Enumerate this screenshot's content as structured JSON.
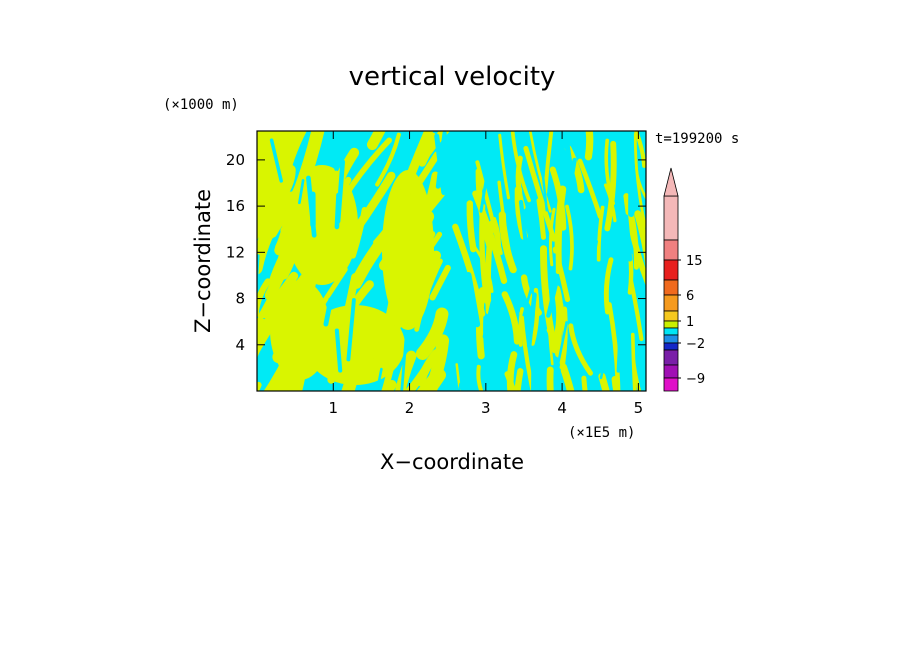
{
  "chart_data": {
    "type": "heatmap",
    "title": "vertical velocity",
    "xlabel": "X−coordinate",
    "ylabel": "Z−coordinate",
    "x_unit": "(×1E5 m)",
    "y_unit": "(×1000 m)",
    "time_label": "t=199200 s",
    "x_ticks": [
      "1",
      "2",
      "3",
      "4",
      "5"
    ],
    "y_ticks": [
      "4",
      "8",
      "12",
      "16",
      "20"
    ],
    "xlim": [
      0,
      5.1
    ],
    "ylim": [
      0,
      22.5
    ],
    "colorbar": {
      "labels": [
        "15",
        "6",
        "1",
        "−2",
        "−9"
      ],
      "colors": [
        "#f4b8b8",
        "#f08080",
        "#e8201e",
        "#f06a1e",
        "#f59a1e",
        "#f5c81e",
        "#c9f000",
        "#00e5f5",
        "#1e8fe6",
        "#1428c8",
        "#7a1fa8",
        "#a010b4",
        "#e010c8"
      ],
      "extend": "max"
    },
    "field_colors": {
      "positive": "#d9f500",
      "negative": "#00eaf5"
    }
  }
}
